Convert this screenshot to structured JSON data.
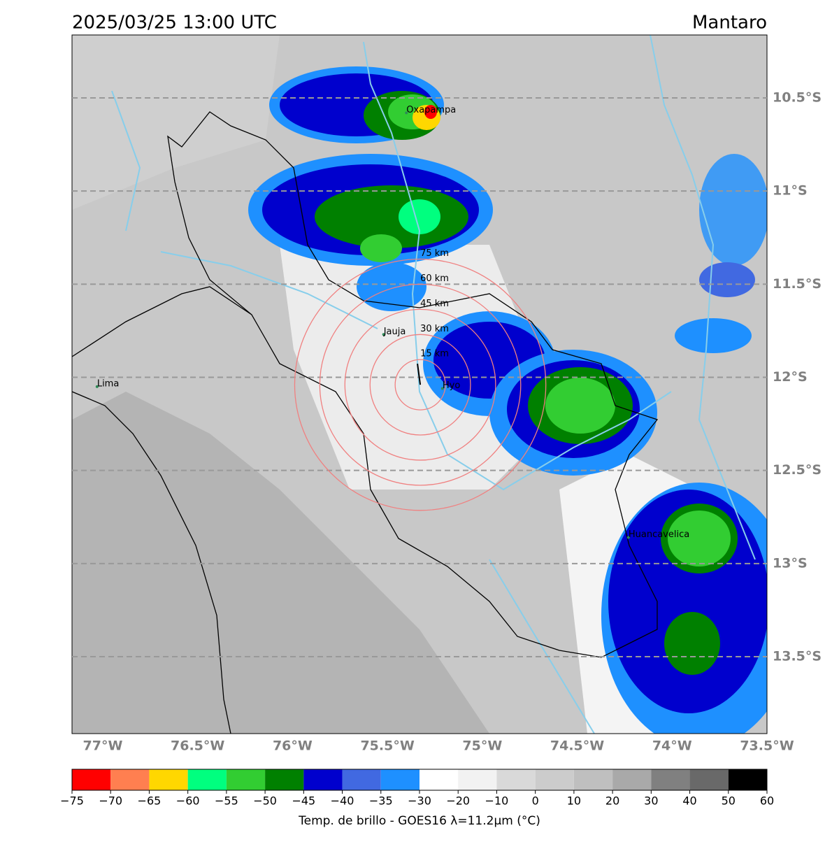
{
  "header": {
    "title": "2025/03/25 13:00 UTC",
    "region": "Mantaro"
  },
  "map": {
    "xlim": [
      -77.162,
      -73.5
    ],
    "ylim": [
      -13.913,
      -10.162
    ],
    "lat_ticks": [
      {
        "value": -10.5,
        "label": "10.5°S"
      },
      {
        "value": -11,
        "label": "11°S"
      },
      {
        "value": -11.5,
        "label": "11.5°S"
      },
      {
        "value": -12,
        "label": "12°S"
      },
      {
        "value": -12.5,
        "label": "12.5°S"
      },
      {
        "value": -13,
        "label": "13°S"
      },
      {
        "value": -13.5,
        "label": "13.5°S"
      }
    ],
    "lon_ticks": [
      {
        "value": -77,
        "label": "77°W"
      },
      {
        "value": -76.5,
        "label": "76.5°W"
      },
      {
        "value": -76,
        "label": "76°W"
      },
      {
        "value": -75.5,
        "label": "75.5°W"
      },
      {
        "value": -75,
        "label": "75°W"
      },
      {
        "value": -74.5,
        "label": "74.5°W"
      },
      {
        "value": -74,
        "label": "74°W"
      },
      {
        "value": -73.5,
        "label": "73.5°W"
      }
    ],
    "cities": [
      {
        "name": "Oxapampa",
        "lon": -75.4,
        "lat": -10.58
      },
      {
        "name": "Jauja",
        "lon": -75.52,
        "lat": -11.77
      },
      {
        "name": "Hyo",
        "lon": -75.21,
        "lat": -12.06
      },
      {
        "name": "Lima",
        "lon": -77.03,
        "lat": -12.05
      },
      {
        "name": "Huancavelica",
        "lon": -74.23,
        "lat": -12.86
      }
    ],
    "radar": {
      "lon": -75.327,
      "lat": -12.04
    },
    "rings": [
      {
        "radius_km": 15,
        "label": "15 km"
      },
      {
        "radius_km": 30,
        "label": "30 km"
      },
      {
        "radius_km": 45,
        "label": "45 km"
      },
      {
        "radius_km": 60,
        "label": "60 km"
      },
      {
        "radius_km": 75,
        "label": "75 km"
      }
    ]
  },
  "colorbar": {
    "label": "Temp. de brillo - GOES16 λ=11.2μm (°C)",
    "ticks": [
      {
        "value": -75,
        "label": "−75"
      },
      {
        "value": -70,
        "label": "−70"
      },
      {
        "value": -65,
        "label": "−65"
      },
      {
        "value": -60,
        "label": "−60"
      },
      {
        "value": -55,
        "label": "−55"
      },
      {
        "value": -50,
        "label": "−50"
      },
      {
        "value": -45,
        "label": "−45"
      },
      {
        "value": -40,
        "label": "−40"
      },
      {
        "value": -35,
        "label": "−35"
      },
      {
        "value": -30,
        "label": "−30"
      },
      {
        "value": -20,
        "label": "−20"
      },
      {
        "value": -10,
        "label": "−10"
      },
      0,
      10,
      20,
      30,
      40,
      50,
      60
    ],
    "colors": [
      "#ff0000",
      "#ff7f50",
      "#ffd700",
      "#00ff7f",
      "#32cd32",
      "#008000",
      "#0000cd",
      "#4169e1",
      "#1e90ff",
      "#ffffff",
      "#f2f2f2",
      "#d9d9d9",
      "#cccccc",
      "#bfbfbf",
      "#a9a9a9",
      "#808080",
      "#696969",
      "#000000"
    ]
  }
}
